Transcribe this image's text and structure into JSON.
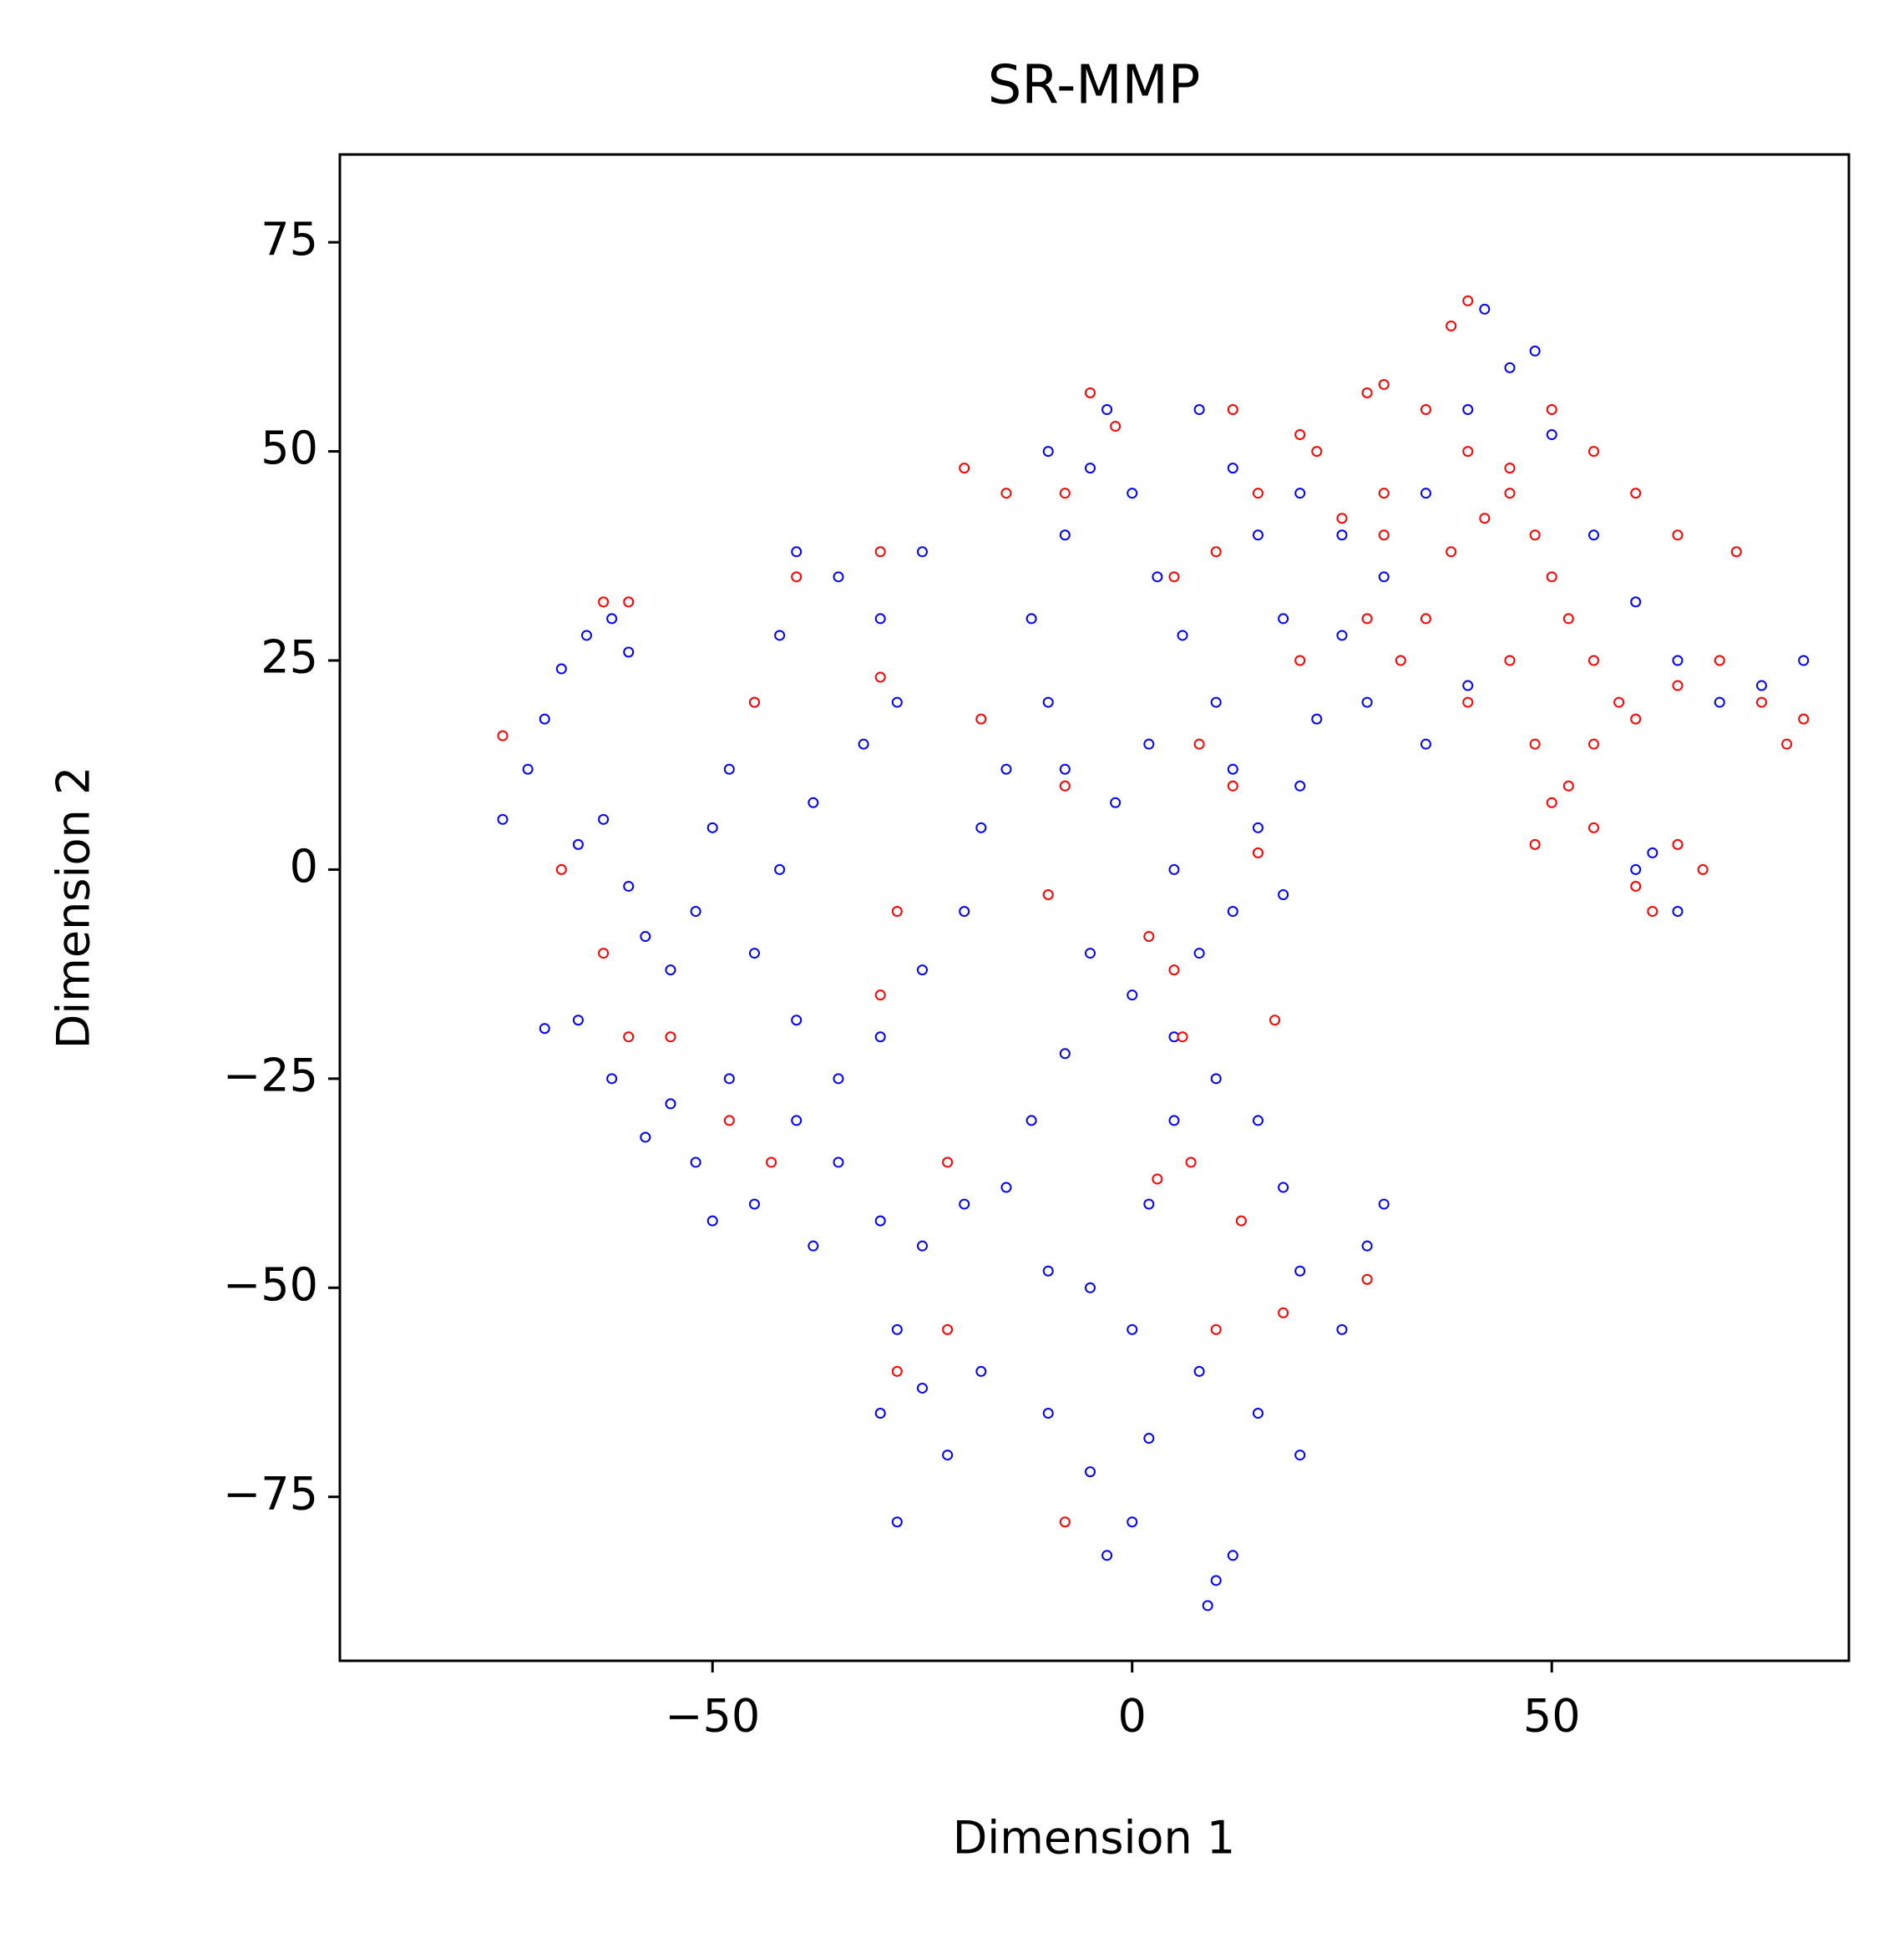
{
  "chart_data": {
    "type": "scatter",
    "title": "SR-MMP",
    "xlabel": "Dimension 1",
    "ylabel": "Dimension 2",
    "xlim": [
      -94.4,
      85.4
    ],
    "ylim": [
      -94.6,
      85.5
    ],
    "xticks": [
      {
        "value": -50,
        "label": "−50"
      },
      0,
      50
    ],
    "yticks": [
      {
        "value": -75,
        "label": "−75"
      },
      {
        "value": -50,
        "label": "−50"
      },
      {
        "value": -25,
        "label": "−25"
      },
      0,
      25,
      50,
      75
    ],
    "series": [
      {
        "color": "#0000ff",
        "x": [
          -75,
          -72,
          -70,
          -68,
          -65,
          -62,
          -60,
          -66,
          -63,
          -60,
          -58,
          -66,
          -70,
          -62,
          -58,
          -55,
          -52,
          -50,
          -55,
          -52,
          -50,
          -48,
          -45,
          -42,
          -40,
          -35,
          -30,
          -25,
          -28,
          -32,
          -38,
          -42,
          -45,
          -40,
          -35,
          -30,
          -25,
          -20,
          -18,
          -15,
          -10,
          -12,
          -8,
          -10,
          -5,
          -3,
          0,
          3,
          6,
          10,
          12,
          15,
          18,
          20,
          22,
          25,
          18,
          15,
          12,
          8,
          20,
          25,
          30,
          35,
          40,
          45,
          48,
          42,
          50,
          55,
          60,
          65,
          70,
          75,
          80,
          60,
          65,
          62,
          -5,
          0,
          5,
          -8,
          -12,
          -15,
          -20,
          -25,
          -30,
          -35,
          -38,
          -28,
          -25,
          -22,
          -28,
          -30,
          -18,
          -10,
          -5,
          0,
          2,
          5,
          10,
          15,
          18,
          20,
          25,
          28,
          30,
          -10,
          -5,
          0,
          -3,
          2,
          8,
          10,
          12,
          9,
          15,
          20,
          -40,
          -45,
          -48,
          8,
          12,
          5,
          -2,
          -8,
          2,
          28,
          35,
          40
        ],
        "y": [
          6,
          12,
          18,
          24,
          28,
          30,
          26,
          3,
          6,
          -2,
          -8,
          -18,
          -19,
          -25,
          -32,
          -28,
          -35,
          -42,
          -12,
          -5,
          5,
          12,
          20,
          28,
          38,
          35,
          30,
          38,
          20,
          15,
          8,
          0,
          -10,
          -18,
          -25,
          -20,
          -12,
          -5,
          5,
          12,
          20,
          30,
          40,
          50,
          48,
          55,
          45,
          35,
          28,
          20,
          12,
          5,
          -3,
          10,
          18,
          28,
          30,
          40,
          48,
          55,
          45,
          40,
          35,
          45,
          55,
          60,
          62,
          67,
          52,
          40,
          32,
          25,
          20,
          22,
          25,
          0,
          -5,
          2,
          -10,
          -15,
          -20,
          -22,
          -30,
          -38,
          -40,
          -45,
          -42,
          -35,
          -45,
          -55,
          -62,
          -70,
          -78,
          -65,
          -60,
          -48,
          -50,
          -55,
          -40,
          -30,
          -25,
          -30,
          -38,
          -48,
          -55,
          -45,
          -40,
          -65,
          -72,
          -78,
          -82,
          -68,
          -60,
          -85,
          -82,
          -88,
          -65,
          -70,
          -30,
          -40,
          -25,
          -10,
          -5,
          0,
          8,
          12,
          15,
          20,
          15,
          22
        ]
      },
      {
        "color": "#ff0000",
        "x": [
          40,
          38,
          -20,
          -15,
          -8,
          -2,
          -5,
          12,
          20,
          22,
          28,
          30,
          35,
          40,
          45,
          48,
          50,
          52,
          55,
          58,
          55,
          52,
          60,
          65,
          70,
          75,
          78,
          80,
          72,
          65,
          60,
          55,
          50,
          45,
          42,
          38,
          35,
          32,
          30,
          28,
          40,
          45,
          48,
          50,
          55,
          60,
          65,
          68,
          62,
          48,
          30,
          25,
          15,
          10,
          5,
          8,
          12,
          15,
          20,
          -18,
          -30,
          -40,
          -45,
          -60,
          -63,
          -75,
          -68,
          -63,
          -60,
          -55,
          -48,
          -43,
          -30,
          -28,
          -22,
          -22,
          -28,
          -10,
          -8,
          5,
          7,
          3,
          10,
          13,
          17,
          18,
          28,
          -8,
          6,
          2,
          -30
        ],
        "y": [
          68,
          65,
          48,
          45,
          45,
          53,
          57,
          55,
          52,
          50,
          57,
          58,
          55,
          50,
          45,
          40,
          35,
          30,
          25,
          20,
          15,
          10,
          18,
          22,
          25,
          20,
          15,
          18,
          38,
          40,
          45,
          50,
          55,
          48,
          42,
          38,
          30,
          25,
          40,
          30,
          20,
          25,
          15,
          8,
          5,
          -2,
          3,
          0,
          -5,
          3,
          45,
          42,
          45,
          38,
          35,
          15,
          10,
          2,
          25,
          18,
          38,
          35,
          20,
          32,
          32,
          16,
          0,
          -10,
          -20,
          -20,
          -30,
          -35,
          -15,
          -5,
          -35,
          -55,
          -60,
          -3,
          10,
          -12,
          -35,
          -37,
          -55,
          -42,
          -18,
          -53,
          -49,
          -78,
          -20,
          -8,
          23
        ]
      }
    ]
  }
}
